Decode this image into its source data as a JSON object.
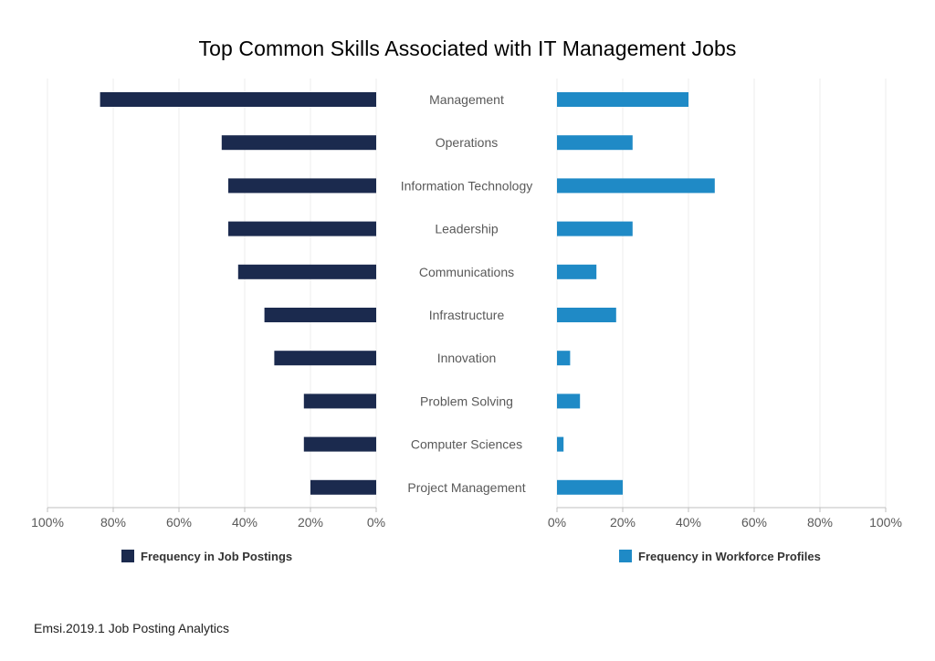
{
  "title": "Top Common Skills Associated with IT Management Jobs",
  "source": "Emsi.2019.1 Job Posting Analytics",
  "chart_data": {
    "type": "bar",
    "orientation": "horizontal",
    "layout": "back-to-back",
    "title": "Top Common Skills Associated with IT Management Jobs",
    "categories": [
      "Management",
      "Operations",
      "Information Technology",
      "Leadership",
      "Communications",
      "Infrastructure",
      "Innovation",
      "Problem Solving",
      "Computer Sciences",
      "Project Management"
    ],
    "series": [
      {
        "name": "Frequency in Job Postings",
        "color": "#1b2a4e",
        "side": "left",
        "values": [
          84,
          47,
          45,
          45,
          42,
          34,
          31,
          22,
          22,
          20
        ]
      },
      {
        "name": "Frequency in Workforce Profiles",
        "color": "#1f8ac6",
        "side": "right",
        "values": [
          40,
          23,
          48,
          23,
          12,
          18,
          4,
          7,
          2,
          20
        ]
      }
    ],
    "left_axis": {
      "range": [
        100,
        0
      ],
      "ticks": [
        "100%",
        "80%",
        "60%",
        "40%",
        "20%",
        "0%"
      ]
    },
    "right_axis": {
      "range": [
        0,
        100
      ],
      "ticks": [
        "0%",
        "20%",
        "40%",
        "60%",
        "80%",
        "100%"
      ]
    },
    "grid": true,
    "legend": "bottom"
  }
}
